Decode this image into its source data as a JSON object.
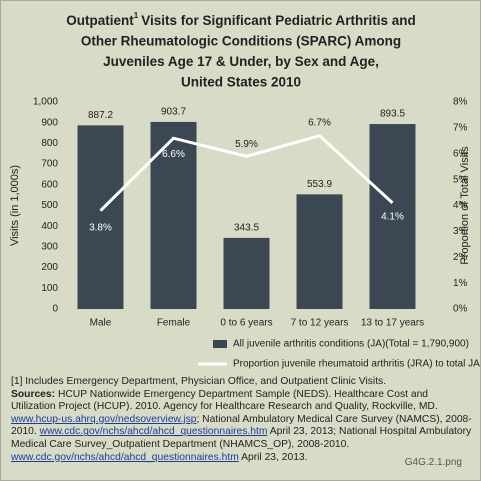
{
  "chart_data": {
    "type": "bar",
    "title": [
      "Outpatient",
      "Visits for Significant Pediatric Arthritis and",
      "Other Rheumatologic Conditions (SPARC) Among",
      "Juveniles Age 17 & Under, by Sex and Age,",
      "United States 2010"
    ],
    "title_superscript": "1",
    "y_label": "Visits (in 1,000s)",
    "y2_label": "Proportion of Total Visits",
    "categories": [
      "Male",
      "Female",
      "0 to 6 years",
      "7 to 12 years",
      "13 to 17 years"
    ],
    "ylim": [
      0,
      1000
    ],
    "yticks": [
      0,
      100,
      200,
      300,
      400,
      500,
      600,
      700,
      800,
      900,
      {
        "value": 1000,
        "label": "1,000"
      }
    ],
    "y2lim": [
      0,
      8
    ],
    "y2ticks": [
      {
        "value": 0,
        "label": "0%"
      },
      {
        "value": 1,
        "label": "1%"
      },
      {
        "value": 2,
        "label": "2%"
      },
      {
        "value": 3,
        "label": "3%"
      },
      {
        "value": 4,
        "label": "4%"
      },
      {
        "value": 5,
        "label": "5%"
      },
      {
        "value": 6,
        "label": "6%"
      },
      {
        "value": 7,
        "label": "7%"
      },
      {
        "value": 8,
        "label": "8%"
      }
    ],
    "series": [
      {
        "name": "All juvenile arthritis conditions (JA)(Total = 1,790,900)",
        "type": "bar",
        "color": "#3b4853",
        "values": [
          887.2,
          903.7,
          343.5,
          553.9,
          893.5
        ]
      },
      {
        "name": "Proportion juvenile rheumatoid arthritis (JRA) to total JA",
        "type": "line",
        "axis": "y2",
        "color": "#ffffff",
        "values": [
          3.8,
          6.6,
          5.9,
          6.7,
          4.1
        ],
        "value_labels": [
          "3.8%",
          "6.6%",
          "5.9%",
          "6.7%",
          "4.1%"
        ]
      }
    ]
  },
  "notes": {
    "footnote": "[1] Includes Emergency Department, Physician Office, and Outpatient Clinic Visits.",
    "sources_label": "Sources:",
    "sources": [
      {
        "text": " HCUP Nationwide Emergency Department Sample (NEDS). Healthcare Cost and Utilization Project (HCUP). 2010. Agency for Healthcare Research and Quality, Rockville, MD. ",
        "link": false
      },
      {
        "text": "www.hcup-us.ahrq.gov/nedsoverview.jsp",
        "link": true
      },
      {
        "text": "; National Ambulatory Medical Care Survey (NAMCS), 2008-2010. ",
        "link": false
      },
      {
        "text": "www.cdc.gov/nchs/ahcd/ahcd_questionnaires.htm",
        "link": true
      },
      {
        "text": " April 23, 2013; National Hospital Ambulatory Medical Care Survey_Outpatient Department (NHAMCS_OP), 2008-2010. ",
        "link": false
      },
      {
        "text": "www.cdc.gov/nchs/ahcd/ahcd_questionnaires.htm",
        "link": true
      },
      {
        "text": " April 23, 2013.",
        "link": false
      }
    ],
    "figure_id": "G4G.2.1.png"
  }
}
